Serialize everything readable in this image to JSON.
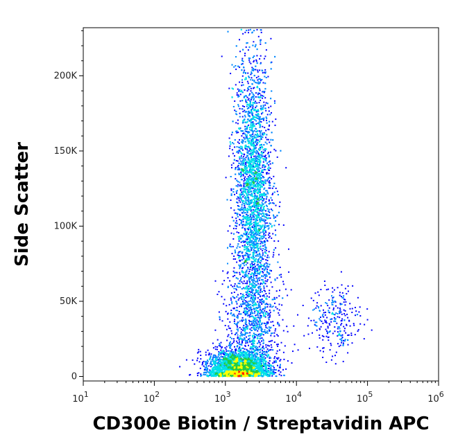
{
  "chart_data": {
    "type": "scatter",
    "style": "density-colored flow cytometry dot plot",
    "xlabel": "CD300e Biotin / Streptavidin APC",
    "ylabel": "Side Scatter",
    "x_scale": "log",
    "xlim": [
      10,
      1000000
    ],
    "ylim": [
      -3000,
      232000
    ],
    "x_ticks": [
      {
        "value": 10,
        "base": "10",
        "exp": "1"
      },
      {
        "value": 100,
        "base": "10",
        "exp": "2"
      },
      {
        "value": 1000,
        "base": "10",
        "exp": "3"
      },
      {
        "value": 10000,
        "base": "10",
        "exp": "4"
      },
      {
        "value": 100000,
        "base": "10",
        "exp": "5"
      },
      {
        "value": 1000000,
        "base": "10",
        "exp": "6"
      }
    ],
    "y_ticks": [
      {
        "value": 0,
        "label": "0"
      },
      {
        "value": 50000,
        "label": "50K"
      },
      {
        "value": 100000,
        "label": "100K"
      },
      {
        "value": 150000,
        "label": "150K"
      },
      {
        "value": 200000,
        "label": "200K"
      }
    ],
    "grid": false,
    "legend": "none",
    "density_colors": [
      "#0000ff",
      "#0088ff",
      "#00e0e8",
      "#22cc44",
      "#ffff00",
      "#ff2200"
    ],
    "populations": [
      {
        "x_center": 1500,
        "x_log_spread": 0.22,
        "y_center": 6000,
        "y_spread": 6000,
        "count": 2600
      },
      {
        "x_center": 2400,
        "x_log_spread": 0.13,
        "y_center": 125000,
        "y_spread": 42000,
        "count": 3400
      },
      {
        "x_center": 35000,
        "x_log_spread": 0.18,
        "y_center": 38000,
        "y_spread": 12000,
        "count": 260
      },
      {
        "x_center": 2400,
        "x_log_spread": 0.2,
        "y_center": 40000,
        "y_spread": 22000,
        "count": 900
      }
    ]
  }
}
